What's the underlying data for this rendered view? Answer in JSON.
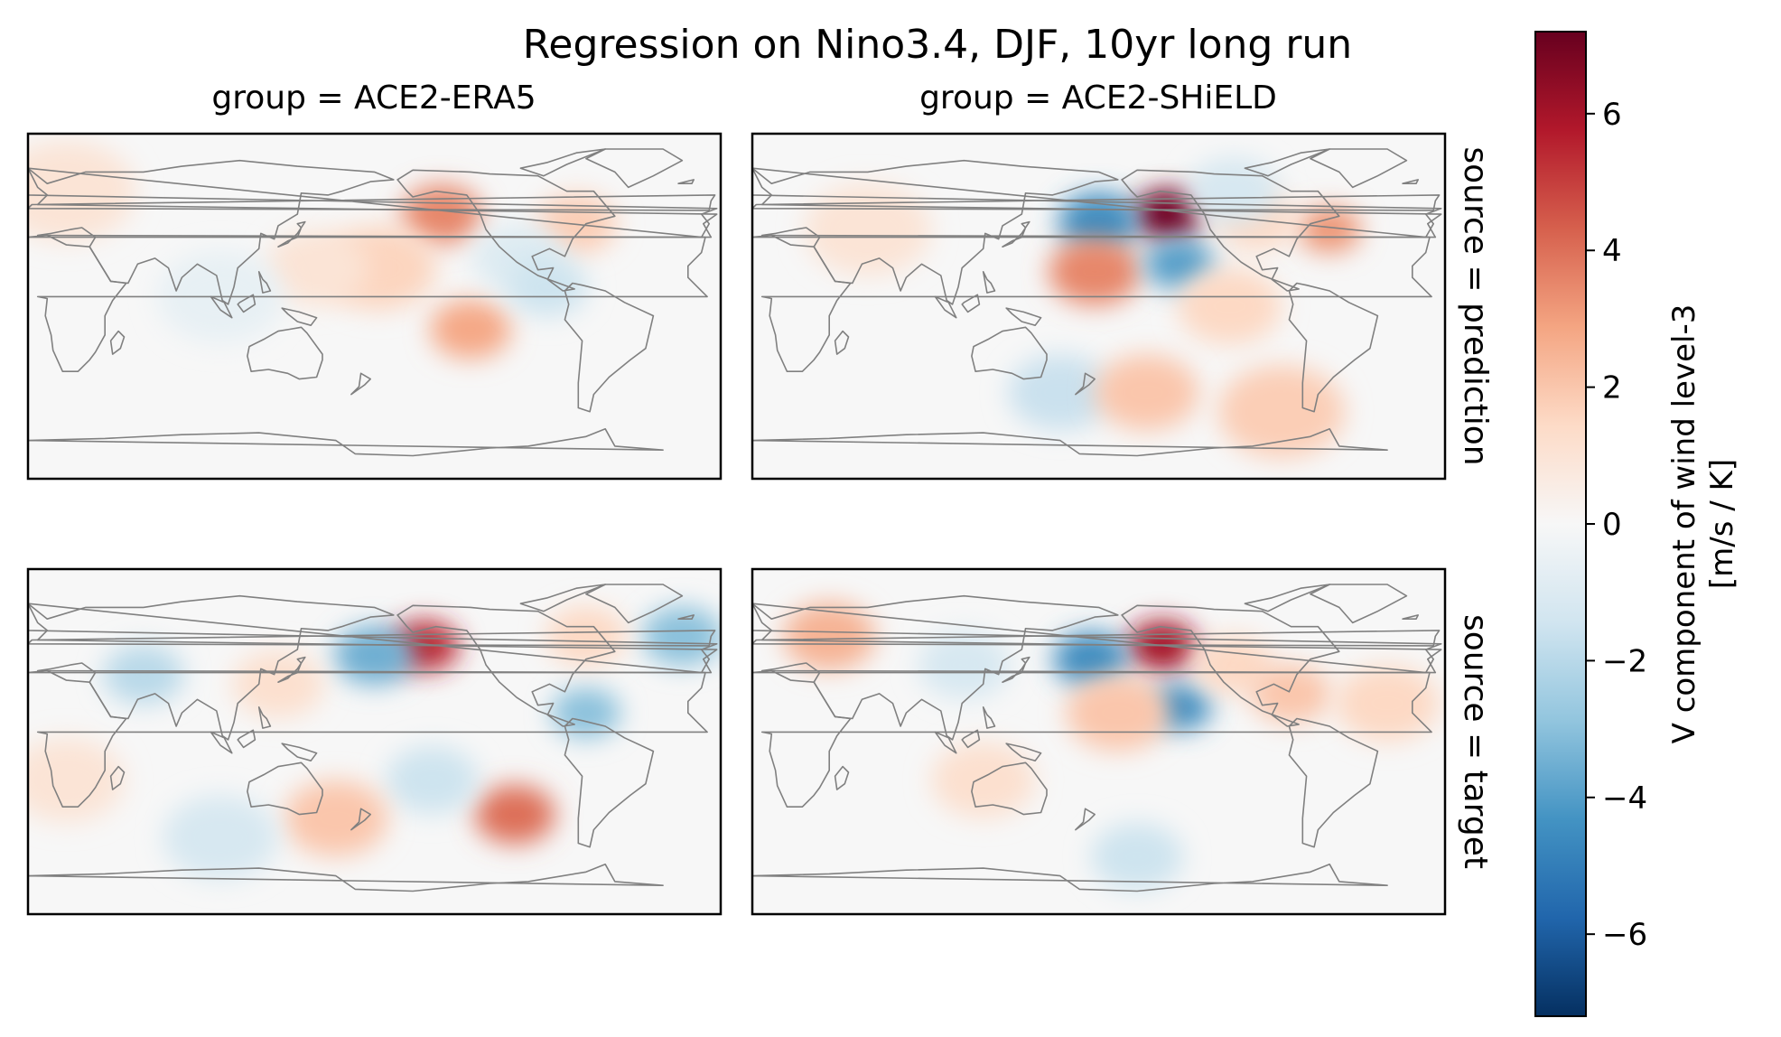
{
  "chart_data": {
    "type": "heatmap",
    "title": "Regression on Nino3.4, DJF, 10yr long run",
    "column_labels": [
      "group = ACE2-ERA5",
      "group = ACE2-SHiELD"
    ],
    "row_labels": [
      "source = prediction",
      "source = target"
    ],
    "colorbar": {
      "label": "V component of wind level-3",
      "units": "[m/s / K]",
      "vmin": -7.2,
      "vmax": 7.2,
      "ticks": [
        6,
        4,
        2,
        0,
        -2,
        -4,
        -6
      ],
      "tick_labels": [
        "6",
        "4",
        "2",
        "0",
        "−2",
        "−4",
        "−6"
      ],
      "colormap": "RdBu_r",
      "color_stops": [
        "#053061",
        "#2166ac",
        "#4393c3",
        "#92c5de",
        "#d1e5f0",
        "#f7f7f7",
        "#fddbc7",
        "#f4a582",
        "#d6604d",
        "#b2182b",
        "#67001f"
      ]
    },
    "coastline_color": "#808080",
    "panels": [
      {
        "group": "ACE2-ERA5",
        "source": "prediction",
        "features": [
          {
            "lon": 215,
            "lat": 48,
            "value": 3.5,
            "extent": 14
          },
          {
            "lon": 182,
            "lat": 20,
            "value": 1.6,
            "extent": 20
          },
          {
            "lon": 230,
            "lat": -12,
            "value": 2.8,
            "extent": 14
          },
          {
            "lon": 285,
            "lat": 43,
            "value": 1.8,
            "extent": 14
          },
          {
            "lon": 255,
            "lat": 25,
            "value": -1.0,
            "extent": 16
          },
          {
            "lon": 270,
            "lat": 10,
            "value": -1.5,
            "extent": 14
          },
          {
            "lon": 20,
            "lat": 60,
            "value": 1.0,
            "extent": 24
          },
          {
            "lon": 150,
            "lat": 20,
            "value": 1.0,
            "extent": 18
          },
          {
            "lon": 100,
            "lat": 5,
            "value": -0.6,
            "extent": 22
          }
        ]
      },
      {
        "group": "ACE2-SHiELD",
        "source": "prediction",
        "features": [
          {
            "lon": 216,
            "lat": 48,
            "value": 7.0,
            "extent": 12
          },
          {
            "lon": 180,
            "lat": 44,
            "value": -4.5,
            "extent": 14
          },
          {
            "lon": 178,
            "lat": 18,
            "value": 3.5,
            "extent": 16
          },
          {
            "lon": 222,
            "lat": 22,
            "value": -4.0,
            "extent": 12
          },
          {
            "lon": 300,
            "lat": 40,
            "value": 3.2,
            "extent": 11
          },
          {
            "lon": 262,
            "lat": 45,
            "value": 1.5,
            "extent": 14
          },
          {
            "lon": 248,
            "lat": 0,
            "value": 1.5,
            "extent": 18
          },
          {
            "lon": 160,
            "lat": -45,
            "value": -1.6,
            "extent": 18
          },
          {
            "lon": 205,
            "lat": -45,
            "value": 2.0,
            "extent": 18
          },
          {
            "lon": 275,
            "lat": -55,
            "value": 1.8,
            "extent": 22
          },
          {
            "lon": 60,
            "lat": 40,
            "value": 1.0,
            "extent": 22
          },
          {
            "lon": 250,
            "lat": 60,
            "value": -1.2,
            "extent": 16
          }
        ]
      },
      {
        "group": "ACE2-ERA5",
        "source": "target",
        "features": [
          {
            "lon": 206,
            "lat": 50,
            "value": 5.5,
            "extent": 12
          },
          {
            "lon": 180,
            "lat": 45,
            "value": -3.5,
            "extent": 14
          },
          {
            "lon": 253,
            "lat": -38,
            "value": 4.0,
            "extent": 14
          },
          {
            "lon": 290,
            "lat": 15,
            "value": -3.0,
            "extent": 12
          },
          {
            "lon": 340,
            "lat": 55,
            "value": -3.0,
            "extent": 14
          },
          {
            "lon": 210,
            "lat": -20,
            "value": -1.5,
            "extent": 16
          },
          {
            "lon": 160,
            "lat": -40,
            "value": 2.0,
            "extent": 18
          },
          {
            "lon": 60,
            "lat": 35,
            "value": -2.0,
            "extent": 14
          },
          {
            "lon": 290,
            "lat": 55,
            "value": 1.5,
            "extent": 14
          },
          {
            "lon": 130,
            "lat": 30,
            "value": 1.2,
            "extent": 16
          },
          {
            "lon": 20,
            "lat": -20,
            "value": 1.0,
            "extent": 20
          },
          {
            "lon": 100,
            "lat": -50,
            "value": -1.2,
            "extent": 20
          }
        ]
      },
      {
        "group": "ACE2-SHiELD",
        "source": "target",
        "features": [
          {
            "lon": 213,
            "lat": 50,
            "value": 6.0,
            "extent": 12
          },
          {
            "lon": 176,
            "lat": 43,
            "value": -4.5,
            "extent": 13
          },
          {
            "lon": 222,
            "lat": 18,
            "value": -4.5,
            "extent": 11
          },
          {
            "lon": 190,
            "lat": 15,
            "value": 2.0,
            "extent": 18
          },
          {
            "lon": 250,
            "lat": 40,
            "value": 1.5,
            "extent": 14
          },
          {
            "lon": 280,
            "lat": 25,
            "value": 2.0,
            "extent": 14
          },
          {
            "lon": 40,
            "lat": 55,
            "value": 2.5,
            "extent": 16
          },
          {
            "lon": 110,
            "lat": 40,
            "value": -1.2,
            "extent": 16
          },
          {
            "lon": 200,
            "lat": -60,
            "value": -1.5,
            "extent": 16
          },
          {
            "lon": 330,
            "lat": 20,
            "value": 1.5,
            "extent": 18
          },
          {
            "lon": 120,
            "lat": -20,
            "value": 1.2,
            "extent": 18
          }
        ]
      }
    ]
  }
}
